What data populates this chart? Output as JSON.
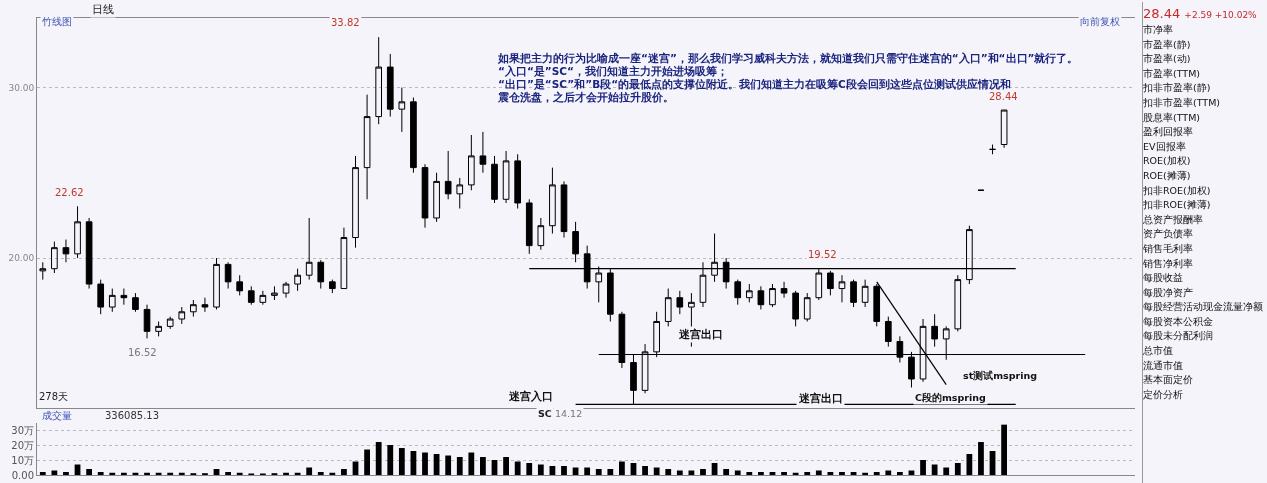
{
  "chart_data": [
    {
      "type": "candlestick",
      "color": "#000000",
      "log": true,
      "grid": "y",
      "ylim": [
        14.0,
        35.4
      ],
      "yticks": [
        {
          "value": 20,
          "label": "20.00"
        },
        {
          "value": 30,
          "label": "30.00"
        }
      ],
      "categories": [
        null,
        null,
        null,
        null,
        null,
        null,
        null,
        null,
        null,
        null,
        null,
        null,
        null,
        null,
        null,
        null,
        null,
        null,
        null,
        null,
        null,
        null,
        null,
        null,
        null,
        null,
        null,
        null,
        null,
        null,
        null,
        null,
        null,
        null,
        null,
        null,
        null,
        null,
        null,
        null,
        null,
        null,
        null,
        null,
        null,
        null,
        null,
        null,
        null,
        null,
        null,
        null,
        null,
        null,
        null,
        null,
        null,
        null,
        null,
        null,
        null,
        null,
        null,
        null,
        null,
        null,
        null,
        null,
        null,
        null,
        null,
        null,
        null,
        null,
        null,
        null,
        null,
        null,
        null,
        null,
        null,
        null,
        null,
        null,
        null,
        null,
        null,
        null,
        null,
        null,
        null,
        null,
        null,
        null
      ],
      "ohlc": [
        [
          19.4,
          19.8,
          19.0,
          19.5
        ],
        [
          19.5,
          20.8,
          19.3,
          20.5
        ],
        [
          20.5,
          20.9,
          19.8,
          20.2
        ],
        [
          20.2,
          22.62,
          20.0,
          21.8
        ],
        [
          21.8,
          22.0,
          18.6,
          18.8
        ],
        [
          18.8,
          19.0,
          17.5,
          17.8
        ],
        [
          17.8,
          18.6,
          17.6,
          18.3
        ],
        [
          18.3,
          18.6,
          17.9,
          18.2
        ],
        [
          18.2,
          18.4,
          17.6,
          17.7
        ],
        [
          17.7,
          17.9,
          16.52,
          16.8
        ],
        [
          16.8,
          17.2,
          16.6,
          17.0
        ],
        [
          17.0,
          17.4,
          16.9,
          17.3
        ],
        [
          17.3,
          17.8,
          17.1,
          17.6
        ],
        [
          17.6,
          18.1,
          17.4,
          17.9
        ],
        [
          17.9,
          18.2,
          17.6,
          17.8
        ],
        [
          17.8,
          20.0,
          17.7,
          19.7
        ],
        [
          19.7,
          19.8,
          18.6,
          18.9
        ],
        [
          18.9,
          19.2,
          18.3,
          18.5
        ],
        [
          18.5,
          18.7,
          17.9,
          18.0
        ],
        [
          18.0,
          18.5,
          17.9,
          18.3
        ],
        [
          18.3,
          18.7,
          18.1,
          18.4
        ],
        [
          18.4,
          18.9,
          18.2,
          18.8
        ],
        [
          18.8,
          19.5,
          18.5,
          19.2
        ],
        [
          19.2,
          22.0,
          19.0,
          19.8
        ],
        [
          19.8,
          19.9,
          18.6,
          18.9
        ],
        [
          18.9,
          19.0,
          18.4,
          18.6
        ],
        [
          18.6,
          21.5,
          18.6,
          21.0
        ],
        [
          21.0,
          25.5,
          20.5,
          24.8
        ],
        [
          24.8,
          29.5,
          23.0,
          28.0
        ],
        [
          28.0,
          33.82,
          27.5,
          31.5
        ],
        [
          31.5,
          32.5,
          28.0,
          28.5
        ],
        [
          28.5,
          30.0,
          27.0,
          29.0
        ],
        [
          29.0,
          29.3,
          24.5,
          24.8
        ],
        [
          24.8,
          25.0,
          21.5,
          22.0
        ],
        [
          22.0,
          24.5,
          21.8,
          24.0
        ],
        [
          24.0,
          25.8,
          23.0,
          23.3
        ],
        [
          23.3,
          24.2,
          22.5,
          23.8
        ],
        [
          23.8,
          26.8,
          23.5,
          25.5
        ],
        [
          25.5,
          27.0,
          24.5,
          25.0
        ],
        [
          25.0,
          25.5,
          22.8,
          23.0
        ],
        [
          23.0,
          25.8,
          22.8,
          25.2
        ],
        [
          25.2,
          25.6,
          22.5,
          22.8
        ],
        [
          22.8,
          23.0,
          20.2,
          20.6
        ],
        [
          20.6,
          22.0,
          20.4,
          21.6
        ],
        [
          21.6,
          24.8,
          21.2,
          23.8
        ],
        [
          23.8,
          24.0,
          21.0,
          21.3
        ],
        [
          21.3,
          21.8,
          19.8,
          20.2
        ],
        [
          20.2,
          20.6,
          18.6,
          18.9
        ],
        [
          18.9,
          19.6,
          18.0,
          19.3
        ],
        [
          19.3,
          19.5,
          17.2,
          17.5
        ],
        [
          17.5,
          17.6,
          15.4,
          15.6
        ],
        [
          15.6,
          15.9,
          14.12,
          14.6
        ],
        [
          14.6,
          16.3,
          14.5,
          16.0
        ],
        [
          16.0,
          17.6,
          15.8,
          17.2
        ],
        [
          17.2,
          18.6,
          17.0,
          18.2
        ],
        [
          18.2,
          18.5,
          17.5,
          17.8
        ],
        [
          17.8,
          18.4,
          16.2,
          18.0
        ],
        [
          18.0,
          19.8,
          17.8,
          19.2
        ],
        [
          19.2,
          21.2,
          18.9,
          19.8
        ],
        [
          19.8,
          20.0,
          18.6,
          18.9
        ],
        [
          18.9,
          19.0,
          17.9,
          18.2
        ],
        [
          18.2,
          18.8,
          18.0,
          18.5
        ],
        [
          18.5,
          18.7,
          17.7,
          17.9
        ],
        [
          17.9,
          18.8,
          17.8,
          18.6
        ],
        [
          18.6,
          18.9,
          18.2,
          18.4
        ],
        [
          18.4,
          18.5,
          17.0,
          17.3
        ],
        [
          17.3,
          18.4,
          17.2,
          18.2
        ],
        [
          18.2,
          19.52,
          18.1,
          19.3
        ],
        [
          19.3,
          19.4,
          18.3,
          18.6
        ],
        [
          18.6,
          19.2,
          18.0,
          18.9
        ],
        [
          18.9,
          19.0,
          17.8,
          18.0
        ],
        [
          18.0,
          19.0,
          17.8,
          18.7
        ],
        [
          18.7,
          18.8,
          17.0,
          17.2
        ],
        [
          17.2,
          17.4,
          16.2,
          16.4
        ],
        [
          16.4,
          16.6,
          15.6,
          15.8
        ],
        [
          15.8,
          16.0,
          14.7,
          15.0
        ],
        [
          15.0,
          17.3,
          14.9,
          17.0
        ],
        [
          17.0,
          17.5,
          16.2,
          16.5
        ],
        [
          16.5,
          17.0,
          15.7,
          16.9
        ],
        [
          16.9,
          19.2,
          16.8,
          19.0
        ],
        [
          19.0,
          21.6,
          18.8,
          21.4
        ],
        [
          23.5,
          23.5,
          23.5,
          23.5
        ],
        [
          25.9,
          26.2,
          25.6,
          25.9
        ],
        [
          26.2,
          28.44,
          26.0,
          28.44
        ],
        null,
        null,
        null,
        null,
        null,
        null,
        null,
        null,
        null,
        null
      ],
      "series": [
        {
          "type": "line",
          "color": "#000000",
          "values": [
            null,
            null,
            null,
            null,
            null,
            null,
            null,
            null,
            null,
            null,
            null,
            null,
            null,
            null,
            null,
            null,
            null,
            null,
            null,
            null,
            null,
            null,
            null,
            null,
            null,
            null,
            null,
            null,
            null,
            null,
            null,
            null,
            null,
            null,
            null,
            null,
            null,
            null,
            null,
            null,
            null,
            null,
            19.5,
            null,
            null,
            null,
            null,
            null,
            null,
            null,
            null,
            null,
            null,
            null,
            null,
            null,
            null,
            null,
            null,
            null,
            null,
            null,
            null,
            null,
            null,
            null,
            null,
            null,
            null,
            null,
            null,
            null,
            null,
            null,
            null,
            null,
            null,
            null,
            null,
            null,
            null,
            null,
            null,
            null,
            19.5,
            null,
            null,
            null,
            null,
            null,
            null,
            null,
            null,
            null
          ]
        },
        {
          "type": "line",
          "color": "#000000",
          "values": [
            null,
            null,
            null,
            null,
            null,
            null,
            null,
            null,
            null,
            null,
            null,
            null,
            null,
            null,
            null,
            null,
            null,
            null,
            null,
            null,
            null,
            null,
            null,
            null,
            null,
            null,
            null,
            null,
            null,
            null,
            null,
            null,
            null,
            null,
            null,
            null,
            null,
            null,
            null,
            null,
            null,
            null,
            null,
            null,
            null,
            null,
            null,
            null,
            15.9,
            null,
            null,
            null,
            null,
            null,
            null,
            null,
            null,
            null,
            null,
            null,
            null,
            null,
            null,
            null,
            null,
            null,
            null,
            null,
            null,
            null,
            null,
            null,
            null,
            null,
            null,
            null,
            null,
            null,
            null,
            null,
            null,
            null,
            null,
            null,
            null,
            null,
            null,
            null,
            null,
            null,
            15.9,
            null,
            null,
            null
          ]
        },
        {
          "type": "line",
          "color": "#000000",
          "values": [
            null,
            null,
            null,
            null,
            null,
            null,
            null,
            null,
            null,
            null,
            null,
            null,
            null,
            null,
            null,
            null,
            null,
            null,
            null,
            null,
            null,
            null,
            null,
            null,
            null,
            null,
            null,
            null,
            null,
            null,
            null,
            null,
            null,
            null,
            null,
            null,
            null,
            null,
            null,
            null,
            null,
            null,
            null,
            null,
            null,
            null,
            14.12,
            null,
            null,
            null,
            null,
            null,
            null,
            null,
            null,
            null,
            null,
            null,
            null,
            null,
            null,
            null,
            null,
            null,
            null,
            null,
            null,
            null,
            null,
            null,
            null,
            null,
            null,
            null,
            null,
            null,
            null,
            null,
            null,
            null,
            null,
            null,
            null,
            null,
            14.12,
            null,
            null,
            null,
            null,
            null,
            null,
            null,
            null,
            null
          ]
        },
        {
          "type": "line",
          "color": "#000000",
          "values": [
            null,
            null,
            null,
            null,
            null,
            null,
            null,
            null,
            null,
            null,
            null,
            null,
            null,
            null,
            null,
            null,
            null,
            null,
            null,
            null,
            null,
            null,
            null,
            null,
            null,
            null,
            null,
            null,
            null,
            null,
            null,
            null,
            null,
            null,
            null,
            null,
            null,
            null,
            null,
            null,
            null,
            null,
            null,
            null,
            null,
            null,
            null,
            null,
            null,
            null,
            null,
            null,
            null,
            null,
            null,
            null,
            null,
            null,
            null,
            null,
            null,
            null,
            null,
            null,
            null,
            null,
            null,
            null,
            null,
            null,
            null,
            null,
            18.9,
            null,
            null,
            null,
            null,
            null,
            14.8,
            null,
            null,
            null,
            null,
            null,
            null,
            null,
            null,
            null,
            null,
            null,
            null,
            null,
            null,
            null
          ]
        }
      ],
      "annotations": [
        "如果把主力的行为比喻成一座“迷宫”，那么我们学习威科夫方法，就知道我们只需守住迷宫的“入口”和“出口”就行了。",
        "“入口“是”SC“，我们知道主力开始进场吸筹；",
        "“出口”是“SC”和”B段“的最低点的支撑位附近。我们知道主力在吸筹C段会回到这些点位测试供应情况和震仓洗盘，之后才会开始拉升股价。",
        "竹线图",
        "日线",
        "向前复权",
        "278天",
        "SC",
        "迷宫入口",
        "迷宫出口",
        "迷宫出口",
        "st测试mspring",
        "C段的mspring",
        "22.62",
        "16.52",
        "33.82",
        "14.12",
        "19.52",
        "28.44"
      ]
    },
    {
      "type": "bar",
      "color": "#000000",
      "grid": "y",
      "ylim": [
        0,
        34.7
      ],
      "yticks": [
        {
          "value": 0,
          "label": "0.00"
        },
        {
          "value": 10,
          "label": "10万"
        },
        {
          "value": 20,
          "label": "20万"
        },
        {
          "value": 30,
          "label": "30万"
        }
      ],
      "title": "成交量",
      "subtitle": "336085.13",
      "categories": [
        null,
        null,
        null,
        null,
        null,
        null,
        null,
        null,
        null,
        null,
        null,
        null,
        null,
        null,
        null,
        null,
        null,
        null,
        null,
        null,
        null,
        null,
        null,
        null,
        null,
        null,
        null,
        null,
        null,
        null,
        null,
        null,
        null,
        null,
        null,
        null,
        null,
        null,
        null,
        null,
        null,
        null,
        null,
        null,
        null,
        null,
        null,
        null,
        null,
        null,
        null,
        null,
        null,
        null,
        null,
        null,
        null,
        null,
        null,
        null,
        null,
        null,
        null,
        null,
        null,
        null,
        null,
        null,
        null,
        null,
        null,
        null,
        null,
        null,
        null,
        null,
        null,
        null,
        null,
        null,
        null,
        null,
        null,
        null,
        null,
        null,
        null,
        null,
        null,
        null,
        null,
        null,
        null,
        null
      ],
      "values": [
        2,
        3,
        2,
        7,
        4,
        2,
        1.5,
        1.5,
        1.5,
        1.5,
        1.5,
        1.5,
        1.5,
        1.2,
        1.2,
        4,
        2,
        1.5,
        1,
        1,
        1.2,
        1.5,
        1.5,
        5,
        2,
        1.5,
        4,
        9,
        17,
        22,
        20,
        18,
        16,
        15,
        14,
        13,
        12,
        15,
        12,
        10,
        12,
        9,
        8,
        7,
        6,
        6,
        5,
        5,
        4,
        4,
        9,
        8,
        6,
        5,
        4,
        3,
        3,
        4,
        8,
        4,
        3,
        2,
        2,
        2,
        2,
        1.5,
        2,
        3,
        2,
        2,
        2,
        1.5,
        2,
        3,
        2,
        3,
        10,
        7,
        5,
        8,
        14,
        22,
        16,
        33.6,
        null,
        null,
        null,
        null,
        null,
        null,
        null,
        null,
        null,
        null
      ]
    },
    {
      "type": "other",
      "title": "28.44",
      "subtitle": "+2.59 +10.02%",
      "annotations": [
        "市净率",
        "市盈率(静)",
        "市盈率(动)",
        "市盈率(TTM)",
        "扣非市盈率(静)",
        "扣非市盈率(TTM)",
        "股息率(TTM)",
        "盈利回报率",
        "EV回报率",
        "ROE(加权)",
        "ROE(摊薄)",
        "扣非ROE(加权)",
        "扣非ROE(摊薄)",
        "总资产报酬率",
        "资产负债率",
        "销售毛利率",
        "销售净利率",
        "每股收益",
        "每股净资产",
        "每股经营活动现金流量净额",
        "每股资本公积金",
        "每股未分配利润",
        "总市值",
        "流通市值",
        "基本面定价",
        "定价分析"
      ]
    }
  ]
}
